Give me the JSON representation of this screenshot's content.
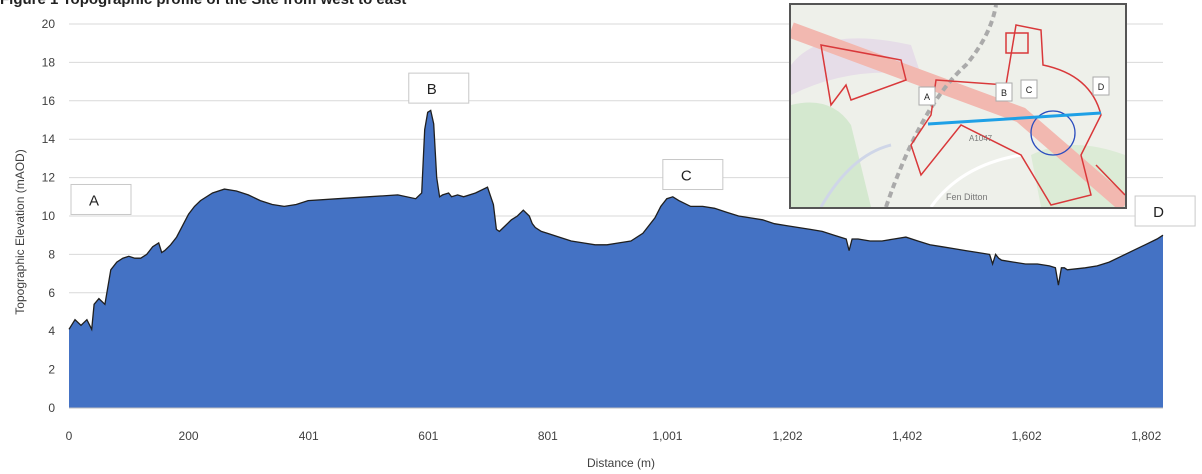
{
  "title_fragment": "Figure 1 Topographic profile of the Site from west to east",
  "chart_data": {
    "type": "area",
    "xlabel": "Distance (m)",
    "ylabel": "Topographic Elevation (mAOD)",
    "ylim": [
      0,
      20
    ],
    "xlim": [
      0,
      1830
    ],
    "yticks": [
      "0",
      "2",
      "4",
      "6",
      "8",
      "10",
      "12",
      "14",
      "16",
      "18",
      "20"
    ],
    "xticks": [
      {
        "v": 0,
        "label": "0"
      },
      {
        "v": 200,
        "label": "200"
      },
      {
        "v": 401,
        "label": "401"
      },
      {
        "v": 601,
        "label": "601"
      },
      {
        "v": 801,
        "label": "801"
      },
      {
        "v": 1001,
        "label": "1,001"
      },
      {
        "v": 1202,
        "label": "1,202"
      },
      {
        "v": 1402,
        "label": "1,402"
      },
      {
        "v": 1602,
        "label": "1,602"
      },
      {
        "v": 1802,
        "label": "1,802"
      }
    ],
    "grid": "horizontal",
    "fill_color": "#4472c4",
    "outline_color": "#1f1f1f",
    "annotations": [
      {
        "label": "A",
        "x": 0,
        "y": 10.6
      },
      {
        "label": "B",
        "x": 565,
        "y": 16.4
      },
      {
        "label": "C",
        "x": 990,
        "y": 11.9
      },
      {
        "label": "D",
        "x": 1780,
        "y": 10.0
      }
    ],
    "series": [
      {
        "x": [
          0,
          10,
          20,
          30,
          38,
          42,
          50,
          60,
          70,
          80,
          90,
          100,
          110,
          120,
          130,
          140,
          150,
          155,
          160,
          170,
          180,
          190,
          200,
          210,
          220,
          240,
          260,
          280,
          300,
          320,
          340,
          360,
          380,
          400,
          450,
          500,
          550,
          580,
          590,
          595,
          600,
          605,
          610,
          615,
          620,
          625,
          635,
          640,
          650,
          660,
          680,
          700,
          710,
          715,
          720,
          730,
          740,
          750,
          760,
          770,
          775,
          780,
          790,
          800,
          820,
          840,
          860,
          880,
          900,
          920,
          940,
          960,
          980,
          990,
          1000,
          1010,
          1020,
          1040,
          1060,
          1080,
          1100,
          1120,
          1140,
          1160,
          1180,
          1200,
          1220,
          1240,
          1260,
          1280,
          1290,
          1300,
          1305,
          1310,
          1320,
          1340,
          1360,
          1380,
          1400,
          1420,
          1440,
          1460,
          1480,
          1500,
          1520,
          1540,
          1545,
          1550,
          1555,
          1560,
          1580,
          1600,
          1620,
          1640,
          1650,
          1655,
          1660,
          1665,
          1670,
          1700,
          1720,
          1740,
          1760,
          1780,
          1800,
          1820,
          1830
        ],
        "y": [
          4.1,
          4.6,
          4.3,
          4.6,
          4.1,
          5.4,
          5.7,
          5.4,
          7.2,
          7.6,
          7.8,
          7.9,
          7.8,
          7.8,
          8.0,
          8.4,
          8.6,
          8.1,
          8.2,
          8.5,
          8.9,
          9.5,
          10.1,
          10.5,
          10.8,
          11.2,
          11.4,
          11.3,
          11.1,
          10.8,
          10.6,
          10.5,
          10.6,
          10.8,
          10.9,
          11.0,
          11.1,
          10.9,
          11.2,
          14.5,
          15.4,
          15.5,
          14.8,
          12.0,
          11.0,
          11.1,
          11.2,
          11.0,
          11.1,
          11.0,
          11.2,
          11.5,
          10.6,
          9.3,
          9.2,
          9.5,
          9.8,
          10.0,
          10.3,
          10.0,
          9.6,
          9.4,
          9.2,
          9.1,
          8.9,
          8.7,
          8.6,
          8.5,
          8.5,
          8.6,
          8.7,
          9.1,
          9.9,
          10.5,
          10.9,
          11.0,
          10.8,
          10.5,
          10.5,
          10.4,
          10.2,
          10.0,
          9.9,
          9.8,
          9.6,
          9.5,
          9.4,
          9.3,
          9.2,
          9.0,
          8.9,
          8.8,
          8.2,
          8.8,
          8.8,
          8.7,
          8.7,
          8.8,
          8.9,
          8.7,
          8.5,
          8.4,
          8.3,
          8.2,
          8.1,
          8.0,
          7.5,
          8.0,
          7.8,
          7.7,
          7.6,
          7.5,
          7.5,
          7.4,
          7.3,
          6.4,
          7.3,
          7.3,
          7.2,
          7.3,
          7.4,
          7.6,
          7.9,
          8.2,
          8.5,
          8.8,
          9.0
        ]
      }
    ]
  },
  "inset_map": {
    "labels": [
      "A",
      "B",
      "C",
      "D",
      "A1047",
      "Fen Ditton"
    ],
    "line_color": "#1ea0e6",
    "boundary_color": "#d9383a",
    "circle_color": "#2b4dbf"
  }
}
